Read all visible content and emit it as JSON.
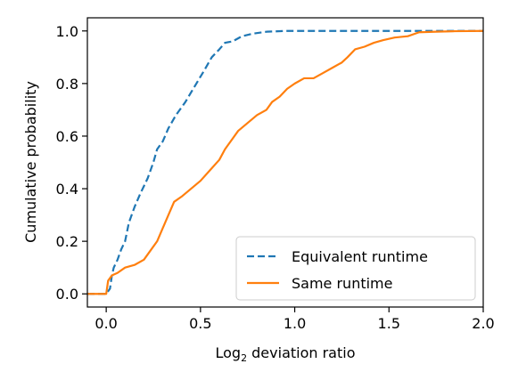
{
  "chart_data": {
    "type": "line",
    "title": "",
    "xlabel_main": "Log",
    "xlabel_sub": "2",
    "xlabel_rest": " deviation ratio",
    "ylabel": "Cumulative probability",
    "xlim": [
      -0.1,
      2.0
    ],
    "ylim": [
      -0.05,
      1.05
    ],
    "x_ticks": [
      0.0,
      0.5,
      1.0,
      1.5,
      2.0
    ],
    "x_tick_labels": [
      "0.0",
      "0.5",
      "1.0",
      "1.5",
      "2.0"
    ],
    "y_ticks": [
      0.0,
      0.2,
      0.4,
      0.6,
      0.8,
      1.0
    ],
    "y_tick_labels": [
      "0.0",
      "0.2",
      "0.4",
      "0.6",
      "0.8",
      "1.0"
    ],
    "grid": false,
    "legend_position": "lower-right",
    "series": [
      {
        "name": "Equivalent runtime",
        "color": "#1f77b4",
        "style": "dashed",
        "points": [
          [
            -0.1,
            0.0
          ],
          [
            0.0,
            0.0
          ],
          [
            0.02,
            0.02
          ],
          [
            0.03,
            0.07
          ],
          [
            0.04,
            0.1
          ],
          [
            0.06,
            0.13
          ],
          [
            0.08,
            0.17
          ],
          [
            0.1,
            0.2
          ],
          [
            0.12,
            0.27
          ],
          [
            0.15,
            0.33
          ],
          [
            0.18,
            0.38
          ],
          [
            0.2,
            0.41
          ],
          [
            0.22,
            0.44
          ],
          [
            0.25,
            0.5
          ],
          [
            0.27,
            0.55
          ],
          [
            0.3,
            0.58
          ],
          [
            0.33,
            0.63
          ],
          [
            0.37,
            0.68
          ],
          [
            0.42,
            0.73
          ],
          [
            0.47,
            0.79
          ],
          [
            0.52,
            0.85
          ],
          [
            0.56,
            0.9
          ],
          [
            0.6,
            0.93
          ],
          [
            0.63,
            0.955
          ],
          [
            0.67,
            0.96
          ],
          [
            0.72,
            0.98
          ],
          [
            0.78,
            0.99
          ],
          [
            0.85,
            0.997
          ],
          [
            0.95,
            1.0
          ],
          [
            2.0,
            1.0
          ]
        ]
      },
      {
        "name": "Same runtime",
        "color": "#ff7f0e",
        "style": "solid",
        "points": [
          [
            -0.1,
            0.0
          ],
          [
            0.0,
            0.0
          ],
          [
            0.01,
            0.05
          ],
          [
            0.03,
            0.07
          ],
          [
            0.06,
            0.08
          ],
          [
            0.1,
            0.1
          ],
          [
            0.15,
            0.11
          ],
          [
            0.2,
            0.13
          ],
          [
            0.23,
            0.16
          ],
          [
            0.27,
            0.2
          ],
          [
            0.3,
            0.25
          ],
          [
            0.33,
            0.3
          ],
          [
            0.36,
            0.35
          ],
          [
            0.4,
            0.37
          ],
          [
            0.45,
            0.4
          ],
          [
            0.5,
            0.43
          ],
          [
            0.55,
            0.47
          ],
          [
            0.6,
            0.51
          ],
          [
            0.63,
            0.55
          ],
          [
            0.66,
            0.58
          ],
          [
            0.7,
            0.62
          ],
          [
            0.75,
            0.65
          ],
          [
            0.8,
            0.68
          ],
          [
            0.85,
            0.7
          ],
          [
            0.88,
            0.73
          ],
          [
            0.92,
            0.75
          ],
          [
            0.96,
            0.78
          ],
          [
            1.0,
            0.8
          ],
          [
            1.05,
            0.82
          ],
          [
            1.1,
            0.82
          ],
          [
            1.15,
            0.84
          ],
          [
            1.2,
            0.86
          ],
          [
            1.25,
            0.88
          ],
          [
            1.28,
            0.9
          ],
          [
            1.32,
            0.93
          ],
          [
            1.37,
            0.94
          ],
          [
            1.42,
            0.955
          ],
          [
            1.47,
            0.965
          ],
          [
            1.53,
            0.975
          ],
          [
            1.6,
            0.98
          ],
          [
            1.66,
            0.995
          ],
          [
            1.75,
            0.997
          ],
          [
            1.85,
            0.999
          ],
          [
            2.0,
            1.0
          ]
        ]
      }
    ]
  }
}
